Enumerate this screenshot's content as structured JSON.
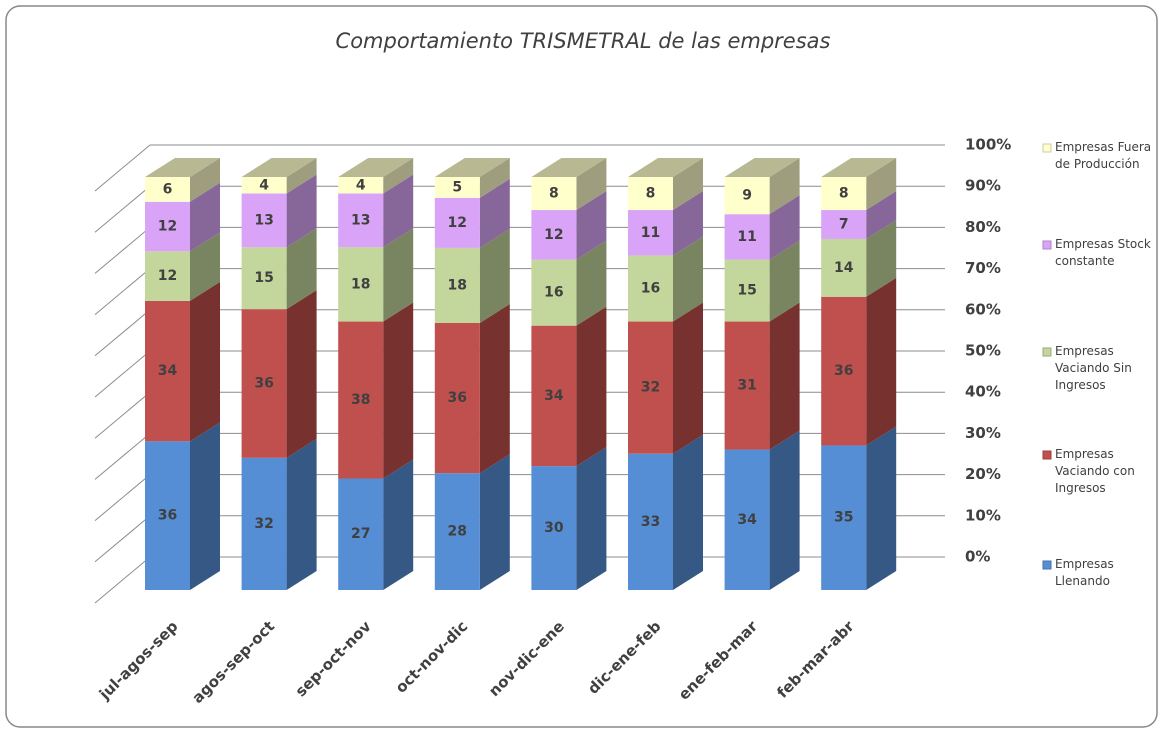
{
  "chart_data": {
    "type": "stacked-percent-bar-3d",
    "title": "Comportamiento TRISMETRAL de las empresas",
    "categories": [
      "jul-agos-sep",
      "agos-sep-oct",
      "sep-oct-nov",
      "oct-nov-dic",
      "nov-dic-ene",
      "dic-ene-feb",
      "ene-feb-mar",
      "feb-mar-abr"
    ],
    "series": [
      {
        "name": "Empresas Llenando",
        "color": "#558ed5",
        "values": [
          36,
          32,
          27,
          28,
          30,
          33,
          34,
          35
        ]
      },
      {
        "name": "Empresas Vaciando con Ingresos",
        "color": "#c0504d",
        "values": [
          34,
          36,
          38,
          36,
          34,
          32,
          31,
          36
        ]
      },
      {
        "name": "Empresas Vaciando Sin Ingresos",
        "color": "#c3d69b",
        "values": [
          12,
          15,
          18,
          18,
          16,
          16,
          15,
          14
        ]
      },
      {
        "name": "Empresas Stock constante",
        "color": "#d9a4f7",
        "values": [
          12,
          13,
          13,
          12,
          12,
          11,
          11,
          7
        ]
      },
      {
        "name": "Empresas Fuera de Producción",
        "color": "#ffffcc",
        "values": [
          6,
          4,
          4,
          5,
          8,
          8,
          9,
          8
        ]
      }
    ],
    "ylim": [
      0,
      100
    ],
    "yticks": [
      {
        "value": 0,
        "label": "0%"
      },
      {
        "value": 10,
        "label": "10%"
      },
      {
        "value": 20,
        "label": "20%"
      },
      {
        "value": 30,
        "label": "30%"
      },
      {
        "value": 40,
        "label": "40%"
      },
      {
        "value": 50,
        "label": "50%"
      },
      {
        "value": 60,
        "label": "60%"
      },
      {
        "value": 70,
        "label": "70%"
      },
      {
        "value": 80,
        "label": "80%"
      },
      {
        "value": 90,
        "label": "90%"
      },
      {
        "value": 100,
        "label": "100%"
      }
    ],
    "grid": true,
    "legend": "right"
  }
}
